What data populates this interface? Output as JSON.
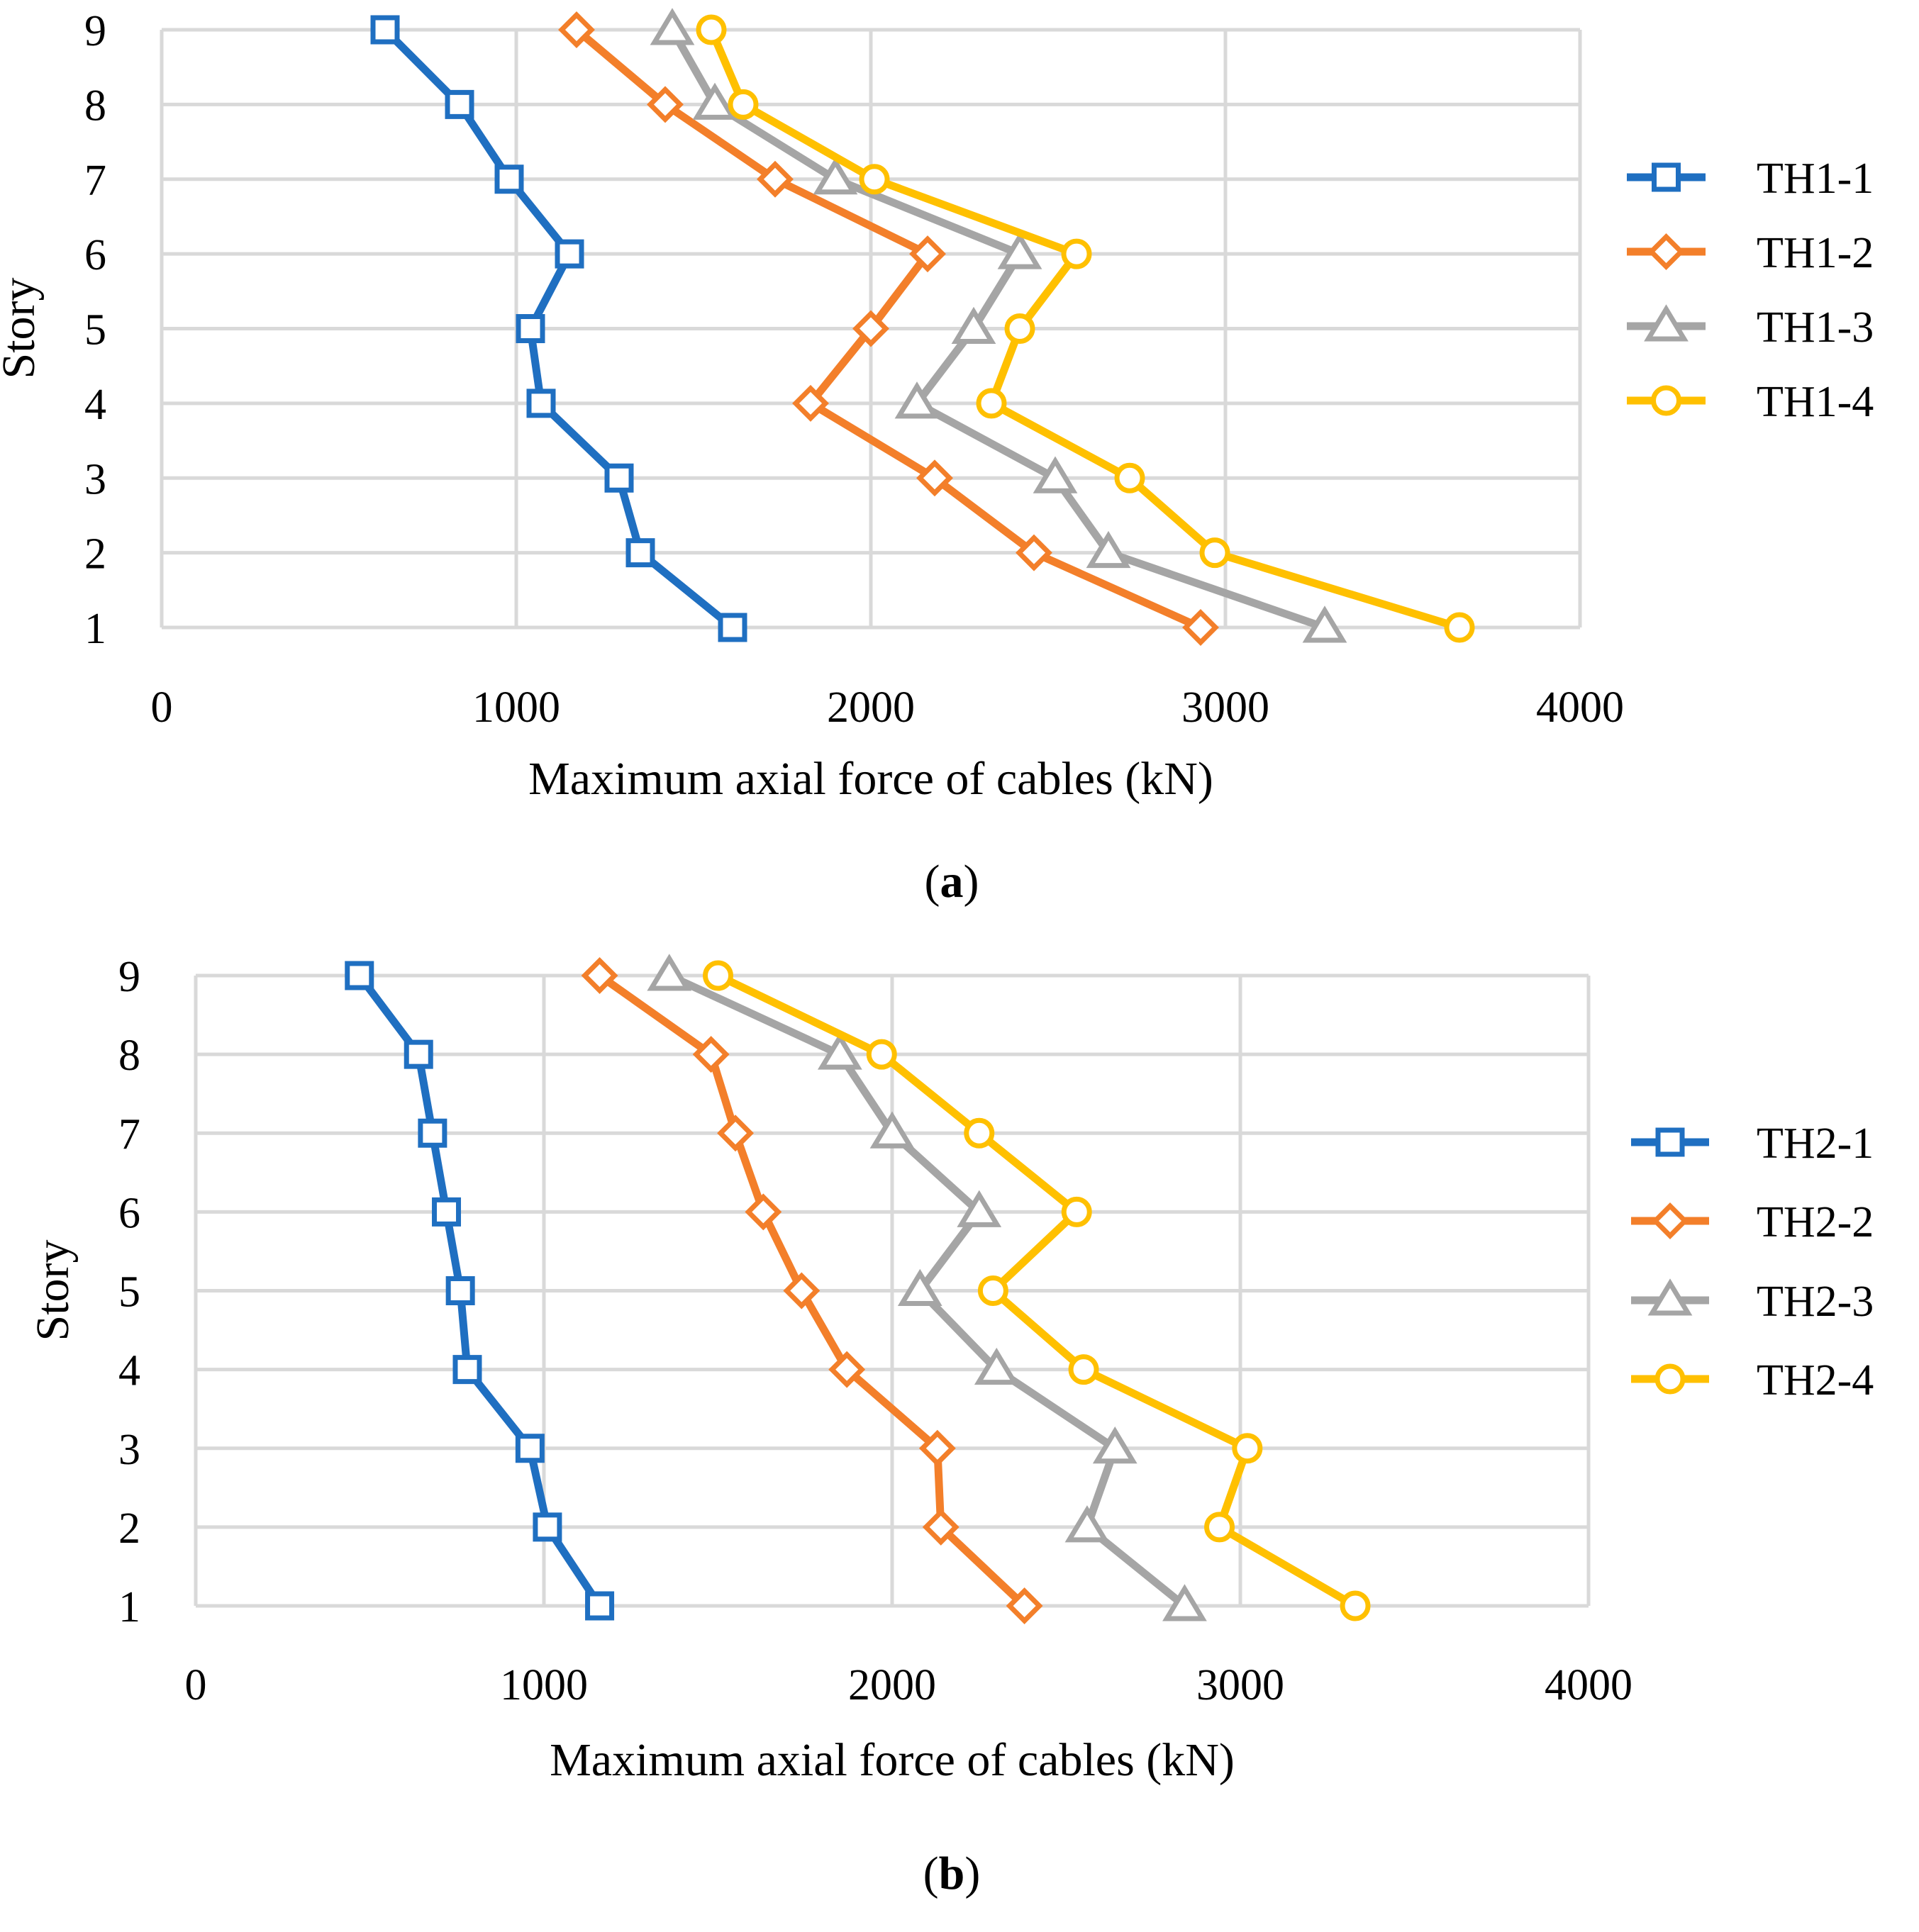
{
  "chart_data": [
    {
      "type": "line",
      "caption_label": "a",
      "xlabel": "Maximum axial force of cables (kN)",
      "ylabel": "Story",
      "xlim": [
        0,
        4000
      ],
      "ylim": [
        1,
        9
      ],
      "xticks": [
        "0",
        "1000",
        "2000",
        "3000",
        "4000"
      ],
      "yticks": [
        "1",
        "2",
        "3",
        "4",
        "5",
        "6",
        "7",
        "8",
        "9"
      ],
      "grid": true,
      "legend_position": "right",
      "y": [
        9,
        8,
        7,
        6,
        5,
        4,
        3,
        2,
        1
      ],
      "series": [
        {
          "name": "TH1-1",
          "color": "#1f6fc1",
          "marker": "square",
          "x": [
            630,
            840,
            980,
            1150,
            1040,
            1070,
            1290,
            1350,
            1610
          ]
        },
        {
          "name": "TH1-2",
          "color": "#f37f2a",
          "marker": "diamond",
          "x": [
            1170,
            1420,
            1730,
            2160,
            2000,
            1830,
            2180,
            2460,
            2930
          ]
        },
        {
          "name": "TH1-3",
          "color": "#a5a5a5",
          "marker": "triangle",
          "x": [
            1440,
            1560,
            1900,
            2420,
            2290,
            2130,
            2520,
            2670,
            3280
          ]
        },
        {
          "name": "TH1-4",
          "color": "#ffc000",
          "marker": "circle",
          "x": [
            1550,
            1640,
            2010,
            2580,
            2420,
            2340,
            2730,
            2970,
            3660
          ]
        }
      ]
    },
    {
      "type": "line",
      "caption_label": "b",
      "xlabel": "Maximum axial force of cables (kN)",
      "ylabel": "Story",
      "xlim": [
        0,
        4000
      ],
      "ylim": [
        1,
        9
      ],
      "xticks": [
        "0",
        "1000",
        "2000",
        "3000",
        "4000"
      ],
      "yticks": [
        "1",
        "2",
        "3",
        "4",
        "5",
        "6",
        "7",
        "8",
        "9"
      ],
      "grid": true,
      "legend_position": "right",
      "y": [
        9,
        8,
        7,
        6,
        5,
        4,
        3,
        2,
        1
      ],
      "series": [
        {
          "name": "TH2-1",
          "color": "#1f6fc1",
          "marker": "square",
          "x": [
            470,
            640,
            680,
            720,
            760,
            780,
            960,
            1010,
            1160
          ]
        },
        {
          "name": "TH2-2",
          "color": "#f37f2a",
          "marker": "diamond",
          "x": [
            1160,
            1480,
            1550,
            1630,
            1740,
            1870,
            2130,
            2140,
            2380
          ]
        },
        {
          "name": "TH2-3",
          "color": "#a5a5a5",
          "marker": "triangle",
          "x": [
            1360,
            1850,
            2000,
            2250,
            2080,
            2300,
            2640,
            2560,
            2840
          ]
        },
        {
          "name": "TH2-4",
          "color": "#ffc000",
          "marker": "circle",
          "x": [
            1500,
            1970,
            2250,
            2530,
            2290,
            2550,
            3020,
            2940,
            3330
          ]
        }
      ]
    }
  ]
}
